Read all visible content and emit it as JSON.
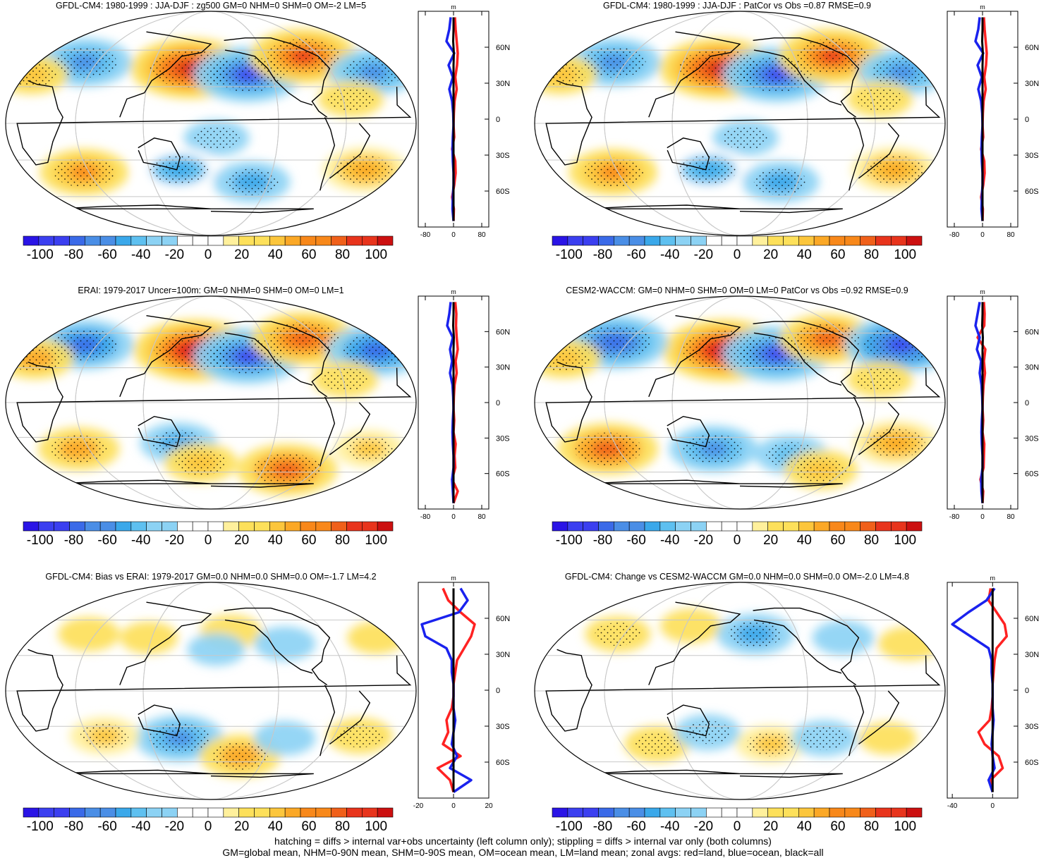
{
  "colors": {
    "palette": [
      "#2a14e6",
      "#3b3ff0",
      "#3a6ae8",
      "#4a8ee6",
      "#3aa8ea",
      "#5ec0f0",
      "#8cd2f4",
      "#ffffff",
      "#ffffff",
      "#fff09c",
      "#fde05a",
      "#fcc63c",
      "#fba826",
      "#f8881a",
      "#f0601a",
      "#e8341c",
      "#cc1010"
    ],
    "land_line": "#ff2222",
    "ocean_line": "#1a22ee",
    "all_line": "#000000"
  },
  "colorbar": {
    "labels": [
      "-100",
      "-80",
      "-60",
      "-40",
      "-20",
      "0",
      "20",
      "40",
      "60",
      "80",
      "100"
    ]
  },
  "notes": {
    "line1": "hatching = diffs > internal var+obs uncertainty (left column only); stippling = diffs > internal var only (both columns)",
    "line2": "GM=global mean, NHM=0-90N mean, SHM=0-90S mean, OM=ocean mean, LM=land mean; zonal avgs: red=land, blue=ocean, black=all"
  },
  "chart_data": [
    {
      "type": "heatmap",
      "title": "GFDL-CM4: 1980-1999 : JJA-DJF : zg500 GM=0 NHM=0 SHM=0 OM=-2 LM=5",
      "projection": "Robinson (Pacific-centred)",
      "variable": "zg500 seasonal difference (m)",
      "levels": [
        -110,
        -100,
        -90,
        -80,
        -70,
        -60,
        -50,
        -40,
        -30,
        -20,
        -10,
        10,
        20,
        30,
        40,
        50,
        60,
        70,
        80,
        90,
        100,
        110
      ],
      "anomalies": [
        {
          "lon": 160,
          "lat": 45,
          "value": 100
        },
        {
          "lon": -145,
          "lat": 40,
          "value": -85
        },
        {
          "lon": -85,
          "lat": 55,
          "value": 85
        },
        {
          "lon": 55,
          "lat": 50,
          "value": -65
        },
        {
          "lon": -25,
          "lat": 42,
          "value": -60
        },
        {
          "lon": 10,
          "lat": 40,
          "value": 40
        },
        {
          "lon": -55,
          "lat": 20,
          "value": 30
        },
        {
          "lon": -175,
          "lat": -12,
          "value": -30
        },
        {
          "lon": 150,
          "lat": -38,
          "value": -55
        },
        {
          "lon": -140,
          "lat": -48,
          "value": -45
        },
        {
          "lon": 60,
          "lat": -40,
          "value": 60
        },
        {
          "lon": -35,
          "lat": -38,
          "value": 55
        }
      ],
      "zonal_profile": {
        "x_ticks": [
          "-80",
          "0",
          "80"
        ],
        "xlim": [
          -100,
          100
        ],
        "y_ticks": [
          "60N",
          "30N",
          "0",
          "30S",
          "60S"
        ],
        "ylim": [
          -90,
          90
        ],
        "units": "m",
        "latitudes": [
          85,
          75,
          65,
          55,
          45,
          35,
          25,
          15,
          5,
          -5,
          -15,
          -25,
          -35,
          -45,
          -55,
          -65,
          -75,
          -85
        ],
        "land": [
          4,
          6,
          9,
          12,
          10,
          5,
          9,
          3,
          1,
          0,
          2,
          -4,
          5,
          6,
          2,
          -4,
          1,
          0
        ],
        "ocean": [
          -8,
          -12,
          -20,
          2,
          -14,
          -2,
          -12,
          -4,
          -1,
          0,
          -2,
          -3,
          -2,
          0,
          0,
          -2,
          -3,
          0
        ],
        "all": [
          0,
          0,
          -1,
          1,
          0,
          0,
          0,
          0,
          0,
          0,
          0,
          0,
          0,
          0,
          0,
          0,
          0,
          0
        ]
      }
    },
    {
      "type": "heatmap",
      "title": "GFDL-CM4: 1980-1999 : JJA-DJF : PatCor vs Obs =0.87 RMSE=0.9",
      "projection": "Robinson (Pacific-centred)",
      "variable": "zg500 seasonal difference (m)",
      "levels": [
        -110,
        -100,
        -90,
        -80,
        -70,
        -60,
        -50,
        -40,
        -30,
        -20,
        -10,
        10,
        20,
        30,
        40,
        50,
        60,
        70,
        80,
        90,
        100,
        110
      ],
      "anomalies": [
        {
          "lon": 160,
          "lat": 45,
          "value": 100
        },
        {
          "lon": -145,
          "lat": 40,
          "value": -85
        },
        {
          "lon": -85,
          "lat": 55,
          "value": 85
        },
        {
          "lon": 55,
          "lat": 50,
          "value": -65
        },
        {
          "lon": -25,
          "lat": 42,
          "value": -60
        },
        {
          "lon": 10,
          "lat": 40,
          "value": 40
        },
        {
          "lon": -55,
          "lat": 20,
          "value": 30
        },
        {
          "lon": -175,
          "lat": -12,
          "value": -30
        },
        {
          "lon": 150,
          "lat": -38,
          "value": -55
        },
        {
          "lon": -140,
          "lat": -48,
          "value": -45
        },
        {
          "lon": 60,
          "lat": -40,
          "value": 60
        },
        {
          "lon": -35,
          "lat": -38,
          "value": 55
        }
      ],
      "zonal_profile": {
        "x_ticks": [
          "-80",
          "0",
          "80"
        ],
        "xlim": [
          -100,
          100
        ],
        "y_ticks": [
          "60N",
          "30N",
          "0",
          "30S",
          "60S"
        ],
        "ylim": [
          -90,
          90
        ],
        "units": "m",
        "latitudes": [
          85,
          75,
          65,
          55,
          45,
          35,
          25,
          15,
          5,
          -5,
          -15,
          -25,
          -35,
          -45,
          -55,
          -65,
          -75,
          -85
        ],
        "land": [
          4,
          6,
          9,
          12,
          10,
          5,
          9,
          3,
          1,
          0,
          2,
          -4,
          5,
          6,
          2,
          -4,
          1,
          0
        ],
        "ocean": [
          -8,
          -12,
          -20,
          2,
          -14,
          -2,
          -12,
          -4,
          -1,
          0,
          -2,
          -3,
          -2,
          0,
          0,
          -2,
          -3,
          0
        ],
        "all": [
          0,
          0,
          -1,
          1,
          0,
          0,
          0,
          0,
          0,
          0,
          0,
          0,
          0,
          0,
          0,
          0,
          0,
          0
        ]
      }
    },
    {
      "type": "heatmap",
      "title": "ERAI: 1979-2017 Uncer=100m: GM=0 NHM=0 SHM=0 OM=0 LM=1",
      "projection": "Robinson (Pacific-centred)",
      "variable": "zg500 seasonal difference (m)",
      "levels": [
        -110,
        -100,
        -90,
        -80,
        -70,
        -60,
        -50,
        -40,
        -30,
        -20,
        -10,
        10,
        20,
        30,
        40,
        50,
        60,
        70,
        80,
        90,
        100,
        110
      ],
      "anomalies": [
        {
          "lon": 165,
          "lat": 45,
          "value": 105
        },
        {
          "lon": -145,
          "lat": 40,
          "value": -85
        },
        {
          "lon": -85,
          "lat": 55,
          "value": 80
        },
        {
          "lon": 55,
          "lat": 50,
          "value": -70
        },
        {
          "lon": -20,
          "lat": 45,
          "value": -75
        },
        {
          "lon": 15,
          "lat": 38,
          "value": 45
        },
        {
          "lon": -60,
          "lat": 20,
          "value": 30
        },
        {
          "lon": 150,
          "lat": -35,
          "value": -45
        },
        {
          "lon": -100,
          "lat": -58,
          "value": 75
        },
        {
          "lon": 55,
          "lat": -40,
          "value": 50
        },
        {
          "lon": -30,
          "lat": -40,
          "value": 35
        },
        {
          "lon": 170,
          "lat": -52,
          "value": 40
        }
      ],
      "zonal_profile": {
        "x_ticks": [
          "-80",
          "0",
          "80"
        ],
        "xlim": [
          -100,
          100
        ],
        "y_ticks": [
          "60N",
          "30N",
          "0",
          "30S",
          "60S"
        ],
        "ylim": [
          -90,
          90
        ],
        "units": "m",
        "latitudes": [
          85,
          75,
          65,
          55,
          45,
          35,
          25,
          15,
          5,
          -5,
          -15,
          -25,
          -35,
          -45,
          -55,
          -65,
          -75,
          -85
        ],
        "land": [
          5,
          8,
          7,
          9,
          12,
          6,
          9,
          3,
          1,
          0,
          2,
          0,
          6,
          3,
          5,
          -4,
          12,
          0
        ],
        "ocean": [
          -8,
          -12,
          -18,
          -2,
          -10,
          -4,
          -10,
          -3,
          -1,
          0,
          -2,
          -3,
          -2,
          0,
          0,
          -4,
          -2,
          0
        ],
        "all": [
          0,
          0,
          -1,
          1,
          0,
          0,
          0,
          0,
          0,
          0,
          0,
          0,
          0,
          0,
          0,
          0,
          0,
          0
        ]
      }
    },
    {
      "type": "heatmap",
      "title": "CESM2-WACCM: GM=0 NHM=0 SHM=0 OM=0 LM=0 PatCor vs Obs =0.92 RMSE=0.9",
      "projection": "Robinson (Pacific-centred)",
      "variable": "zg500 seasonal difference (m)",
      "levels": [
        -110,
        -100,
        -90,
        -80,
        -70,
        -60,
        -50,
        -40,
        -30,
        -20,
        -10,
        10,
        20,
        30,
        40,
        50,
        60,
        70,
        80,
        90,
        100,
        110
      ],
      "anomalies": [
        {
          "lon": 165,
          "lat": 45,
          "value": 105
        },
        {
          "lon": -145,
          "lat": 42,
          "value": -85
        },
        {
          "lon": -90,
          "lat": 55,
          "value": 70
        },
        {
          "lon": 55,
          "lat": 52,
          "value": -80
        },
        {
          "lon": -20,
          "lat": 50,
          "value": -90
        },
        {
          "lon": 15,
          "lat": 38,
          "value": 40
        },
        {
          "lon": -55,
          "lat": 20,
          "value": 30
        },
        {
          "lon": 155,
          "lat": -40,
          "value": -60
        },
        {
          "lon": -130,
          "lat": -45,
          "value": -40
        },
        {
          "lon": 55,
          "lat": -40,
          "value": 75
        },
        {
          "lon": -35,
          "lat": -35,
          "value": 55
        },
        {
          "lon": -95,
          "lat": -58,
          "value": 40
        }
      ],
      "zonal_profile": {
        "x_ticks": [
          "-80",
          "0",
          "80"
        ],
        "xlim": [
          -100,
          100
        ],
        "y_ticks": [
          "60N",
          "30N",
          "0",
          "30S",
          "60S"
        ],
        "ylim": [
          -90,
          90
        ],
        "units": "m",
        "latitudes": [
          85,
          75,
          65,
          55,
          45,
          35,
          25,
          15,
          5,
          -5,
          -15,
          -25,
          -35,
          -45,
          -55,
          -65,
          -75,
          -85
        ],
        "land": [
          4,
          6,
          5,
          -14,
          8,
          4,
          7,
          3,
          1,
          0,
          2,
          0,
          5,
          4,
          3,
          -6,
          2,
          0
        ],
        "ocean": [
          -8,
          -14,
          -20,
          -8,
          -16,
          -4,
          -8,
          -3,
          -1,
          0,
          -2,
          -3,
          -2,
          0,
          0,
          -4,
          -3,
          0
        ],
        "all": [
          0,
          0,
          -1,
          1,
          0,
          0,
          0,
          0,
          0,
          0,
          0,
          0,
          0,
          0,
          0,
          0,
          0,
          0
        ]
      }
    },
    {
      "type": "heatmap",
      "title": "GFDL-CM4: Bias vs ERAI: 1979-2017 GM=0.0 NHM=0.0 SHM=0.0 OM=-1.7 LM=4.2",
      "projection": "Robinson (Pacific-centred)",
      "variable": "zg500 seasonal difference (m)",
      "levels": [
        -110,
        -100,
        -90,
        -80,
        -70,
        -60,
        -50,
        -40,
        -30,
        -20,
        -10,
        10,
        20,
        30,
        40,
        50,
        60,
        70,
        80,
        90,
        100,
        110
      ],
      "anomalies": [
        {
          "lon": 60,
          "lat": 48,
          "value": 25
        },
        {
          "lon": 120,
          "lat": 45,
          "value": 20
        },
        {
          "lon": -160,
          "lat": 50,
          "value": 25
        },
        {
          "lon": -110,
          "lat": 40,
          "value": -25
        },
        {
          "lon": -175,
          "lat": 35,
          "value": -20
        },
        {
          "lon": -20,
          "lat": 45,
          "value": 20
        },
        {
          "lon": 150,
          "lat": -40,
          "value": -60
        },
        {
          "lon": 80,
          "lat": -38,
          "value": 35
        },
        {
          "lon": -150,
          "lat": -55,
          "value": 50
        },
        {
          "lon": -40,
          "lat": -38,
          "value": 30
        },
        {
          "lon": -110,
          "lat": -40,
          "value": -25
        }
      ],
      "zonal_profile": {
        "x_ticks": [
          "-20",
          "0",
          "20"
        ],
        "xlim": [
          -20,
          20
        ],
        "y_ticks": [
          "60N",
          "30N",
          "0",
          "30S",
          "60S"
        ],
        "ylim": [
          -90,
          90
        ],
        "units": "m",
        "latitudes": [
          85,
          75,
          65,
          55,
          45,
          35,
          25,
          15,
          5,
          -5,
          -15,
          -25,
          -35,
          -45,
          -55,
          -65,
          -75,
          -85
        ],
        "land": [
          -6,
          -3,
          4,
          12,
          10,
          6,
          2,
          1,
          0,
          0,
          -1,
          -4,
          -3,
          -6,
          4,
          -9,
          -2,
          0
        ],
        "ocean": [
          4,
          8,
          3,
          -18,
          -16,
          -4,
          -1,
          -1,
          0,
          0,
          0,
          1,
          0,
          -1,
          2,
          -2,
          10,
          0
        ],
        "all": [
          0,
          0,
          0,
          0,
          0,
          0,
          0,
          0,
          0,
          0,
          0,
          0,
          0,
          0,
          0,
          0,
          0,
          0
        ]
      }
    },
    {
      "type": "heatmap",
      "title": "GFDL-CM4: Change vs CESM2-WACCM GM=0.0 NHM=0.0 SHM=0.0 OM=-2.0 LM=4.8",
      "projection": "Robinson (Pacific-centred)",
      "variable": "zg500 seasonal difference (m)",
      "levels": [
        -110,
        -100,
        -90,
        -80,
        -70,
        -60,
        -50,
        -40,
        -30,
        -20,
        -10,
        10,
        20,
        30,
        40,
        50,
        60,
        70,
        80,
        90,
        100,
        110
      ],
      "anomalies": [
        {
          "lon": 60,
          "lat": 48,
          "value": 30
        },
        {
          "lon": 130,
          "lat": 55,
          "value": 25
        },
        {
          "lon": -165,
          "lat": 48,
          "value": -45
        },
        {
          "lon": -80,
          "lat": 45,
          "value": -25
        },
        {
          "lon": -20,
          "lat": 40,
          "value": 25
        },
        {
          "lon": 100,
          "lat": -45,
          "value": 30
        },
        {
          "lon": 150,
          "lat": -35,
          "value": -30
        },
        {
          "lon": -150,
          "lat": -45,
          "value": 35
        },
        {
          "lon": -100,
          "lat": -40,
          "value": -30
        },
        {
          "lon": -40,
          "lat": -40,
          "value": 20
        }
      ],
      "zonal_profile": {
        "x_ticks": [
          "-40",
          "0"
        ],
        "xlim": [
          -45,
          25
        ],
        "y_ticks": [
          "60N",
          "30N",
          "0",
          "30S",
          "60S"
        ],
        "ylim": [
          -90,
          90
        ],
        "units": "m",
        "latitudes": [
          85,
          75,
          65,
          55,
          45,
          35,
          25,
          15,
          5,
          -5,
          -15,
          -25,
          -35,
          -45,
          -55,
          -65,
          -75,
          -85
        ],
        "land": [
          -2,
          -4,
          4,
          12,
          14,
          4,
          2,
          1,
          0,
          0,
          -1,
          -3,
          -14,
          -8,
          6,
          10,
          -2,
          0
        ],
        "ocean": [
          2,
          -6,
          -24,
          -40,
          -22,
          -4,
          -1,
          -1,
          0,
          0,
          0,
          1,
          0,
          -1,
          0,
          2,
          -4,
          0
        ],
        "all": [
          0,
          0,
          0,
          0,
          0,
          0,
          0,
          0,
          0,
          0,
          0,
          0,
          0,
          0,
          0,
          0,
          0,
          0
        ]
      }
    }
  ]
}
